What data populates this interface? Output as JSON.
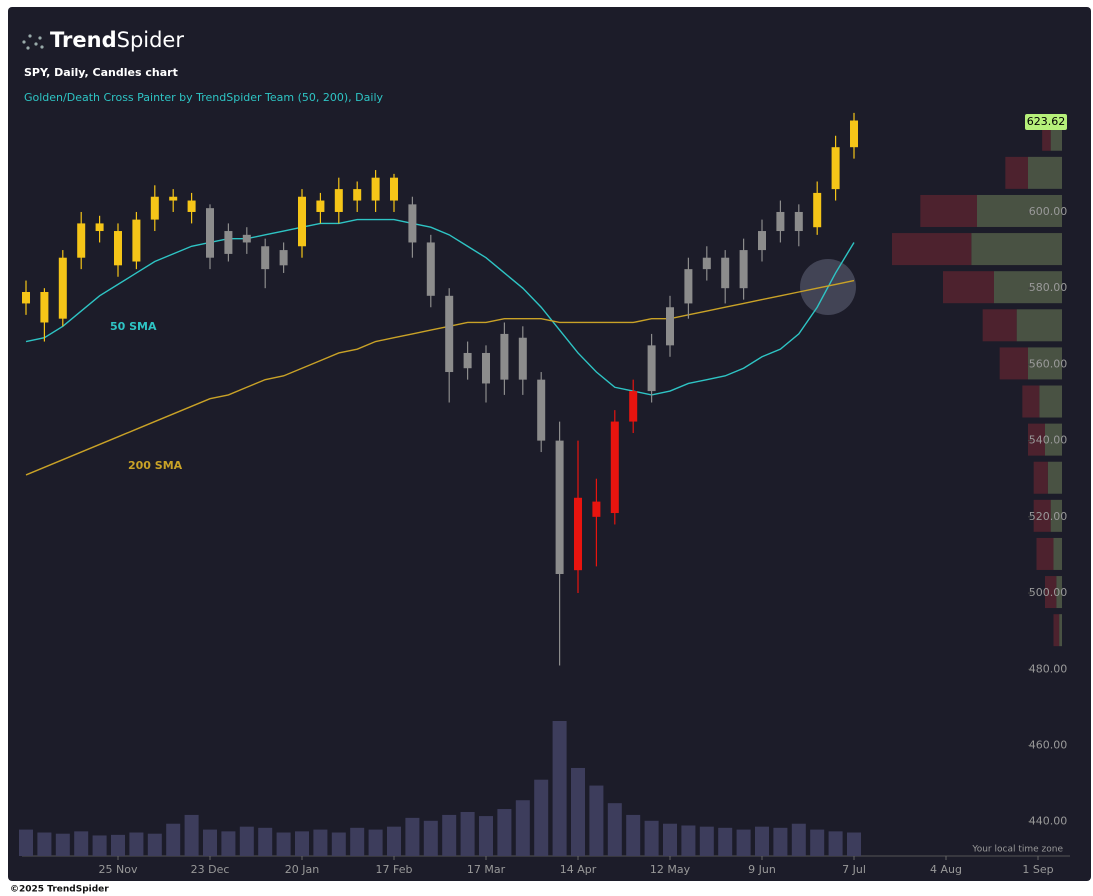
{
  "header": {
    "brand_bold": "Trend",
    "brand_light": "Spider",
    "symbol_line": "SPY, Daily, Candles chart",
    "indicator_line": "Golden/Death Cross Painter by TrendSpider Team (50, 200), Daily",
    "timezone": "Your local time zone",
    "footer": "©2025 TrendSpider"
  },
  "chart_data": {
    "type": "candlestick",
    "categories": [
      null,
      null,
      null,
      null,
      null,
      "25 Nov",
      null,
      null,
      null,
      null,
      "23 Dec",
      null,
      null,
      null,
      null,
      "20 Jan",
      null,
      null,
      null,
      null,
      "17 Feb",
      null,
      null,
      null,
      null,
      "17 Mar",
      null,
      null,
      null,
      null,
      "14 Apr",
      null,
      null,
      null,
      null,
      "12 May",
      null,
      null,
      null,
      null,
      "9 Jun",
      null,
      null,
      null,
      null,
      "7 Jul",
      null,
      null,
      null,
      null,
      "4 Aug",
      null,
      null,
      null,
      null,
      "1 Sep"
    ],
    "open": [
      576,
      579,
      572,
      588,
      597,
      595,
      587,
      598,
      604,
      603,
      601,
      589,
      594,
      591,
      586,
      591,
      603,
      600,
      606,
      603,
      609,
      602,
      592,
      578,
      559,
      563,
      556,
      567,
      556,
      540,
      506,
      524,
      521,
      545,
      553,
      565,
      576,
      585,
      588,
      580,
      590,
      595,
      600,
      596,
      606,
      617,
      null,
      null,
      null,
      null,
      null,
      null,
      null,
      null,
      null,
      null
    ],
    "high": [
      582,
      580,
      590,
      600,
      599,
      597,
      600,
      607,
      606,
      605,
      602,
      597,
      596,
      593,
      592,
      606,
      605,
      609,
      608,
      611,
      610,
      604,
      594,
      580,
      566,
      565,
      571,
      570,
      558,
      545,
      540,
      530,
      548,
      556,
      568,
      578,
      588,
      591,
      590,
      593,
      598,
      603,
      602,
      608,
      620,
      626,
      null,
      null,
      null,
      null,
      null,
      null,
      null,
      null,
      null,
      null
    ],
    "low": [
      573,
      566,
      570,
      585,
      592,
      583,
      585,
      595,
      600,
      597,
      585,
      587,
      589,
      580,
      584,
      588,
      597,
      597,
      600,
      600,
      600,
      588,
      575,
      550,
      556,
      550,
      552,
      552,
      537,
      481,
      500,
      507,
      518,
      542,
      550,
      562,
      572,
      582,
      576,
      577,
      587,
      592,
      591,
      594,
      603,
      614,
      null,
      null,
      null,
      null,
      null,
      null,
      null,
      null,
      null,
      null
    ],
    "close": [
      579,
      571,
      588,
      597,
      595,
      586,
      598,
      604,
      603,
      600,
      588,
      595,
      592,
      585,
      590,
      604,
      600,
      606,
      603,
      609,
      603,
      592,
      578,
      558,
      563,
      555,
      568,
      556,
      540,
      505,
      525,
      520,
      545,
      553,
      565,
      575,
      585,
      588,
      580,
      590,
      595,
      600,
      595,
      605,
      617,
      624,
      null,
      null,
      null,
      null,
      null,
      null,
      null,
      null,
      null,
      null
    ],
    "candle_colors": [
      "#f5c518",
      "#f5c518",
      "#f5c518",
      "#f5c518",
      "#f5c518",
      "#f5c518",
      "#f5c518",
      "#f5c518",
      "#f5c518",
      "#f5c518",
      "#8c8c8c",
      "#8c8c8c",
      "#8c8c8c",
      "#8c8c8c",
      "#8c8c8c",
      "#f5c518",
      "#f5c518",
      "#f5c518",
      "#f5c518",
      "#f5c518",
      "#f5c518",
      "#8c8c8c",
      "#8c8c8c",
      "#8c8c8c",
      "#8c8c8c",
      "#8c8c8c",
      "#8c8c8c",
      "#8c8c8c",
      "#8c8c8c",
      "#8c8c8c",
      "#e8140f",
      "#e8140f",
      "#e8140f",
      "#e8140f",
      "#8c8c8c",
      "#8c8c8c",
      "#8c8c8c",
      "#8c8c8c",
      "#8c8c8c",
      "#8c8c8c",
      "#8c8c8c",
      "#8c8c8c",
      "#8c8c8c",
      "#f5c518",
      "#f5c518",
      "#f5c518",
      null,
      null,
      null,
      null,
      null,
      null,
      null,
      null,
      null,
      null
    ],
    "volume": [
      45,
      40,
      38,
      42,
      35,
      36,
      40,
      38,
      55,
      70,
      45,
      42,
      50,
      48,
      40,
      42,
      45,
      40,
      48,
      45,
      50,
      65,
      60,
      70,
      75,
      68,
      80,
      95,
      130,
      230,
      150,
      120,
      90,
      70,
      60,
      55,
      52,
      50,
      48,
      45,
      50,
      48,
      55,
      45,
      42,
      40,
      null,
      null,
      null,
      null,
      null,
      null,
      null,
      null,
      null,
      null
    ],
    "volume_color": "#3d3d5c",
    "series": [
      {
        "name": "50 SMA",
        "color": "#2ec4c4",
        "values": [
          566,
          567,
          570,
          574,
          578,
          581,
          584,
          587,
          589,
          591,
          592,
          593,
          593,
          594,
          595,
          596,
          597,
          597,
          598,
          598,
          598,
          597,
          596,
          594,
          591,
          588,
          584,
          580,
          575,
          569,
          563,
          558,
          554,
          553,
          552,
          553,
          555,
          556,
          557,
          559,
          562,
          564,
          568,
          575,
          584,
          592,
          null,
          null,
          null,
          null,
          null,
          null,
          null,
          null,
          null,
          null
        ]
      },
      {
        "name": "200 SMA",
        "color": "#c9a227",
        "values": [
          531,
          533,
          535,
          537,
          539,
          541,
          543,
          545,
          547,
          549,
          551,
          552,
          554,
          556,
          557,
          559,
          561,
          563,
          564,
          566,
          567,
          568,
          569,
          570,
          571,
          571,
          572,
          572,
          572,
          571,
          571,
          571,
          571,
          571,
          572,
          572,
          573,
          574,
          575,
          576,
          577,
          578,
          579,
          580,
          581,
          582,
          null,
          null,
          null,
          null,
          null,
          null,
          null,
          null,
          null,
          null
        ]
      }
    ],
    "volume_profile": {
      "prices": [
        490,
        500,
        510,
        520,
        530,
        540,
        550,
        560,
        570,
        580,
        590,
        600,
        610,
        620
      ],
      "buy": [
        5,
        10,
        15,
        20,
        25,
        30,
        40,
        60,
        80,
        120,
        160,
        150,
        60,
        20
      ],
      "sell": [
        10,
        20,
        30,
        30,
        25,
        30,
        30,
        50,
        60,
        90,
        140,
        100,
        40,
        15
      ],
      "buy_color": "#55604a",
      "sell_color": "#5a2430"
    },
    "last_price": {
      "value": 623.62,
      "label": "623.62"
    },
    "ylim": [
      431,
      653
    ],
    "yticks": [
      {
        "value": 440,
        "label": "440.00"
      },
      {
        "value": 460,
        "label": "460.00"
      },
      {
        "value": 480,
        "label": "480.00"
      },
      {
        "value": 500,
        "label": "500.00"
      },
      {
        "value": 520,
        "label": "520.00"
      },
      {
        "value": 540,
        "label": "540.00"
      },
      {
        "value": 560,
        "label": "560.00"
      },
      {
        "value": 580,
        "label": "580.00"
      },
      {
        "value": 600,
        "label": "600.00"
      }
    ]
  }
}
